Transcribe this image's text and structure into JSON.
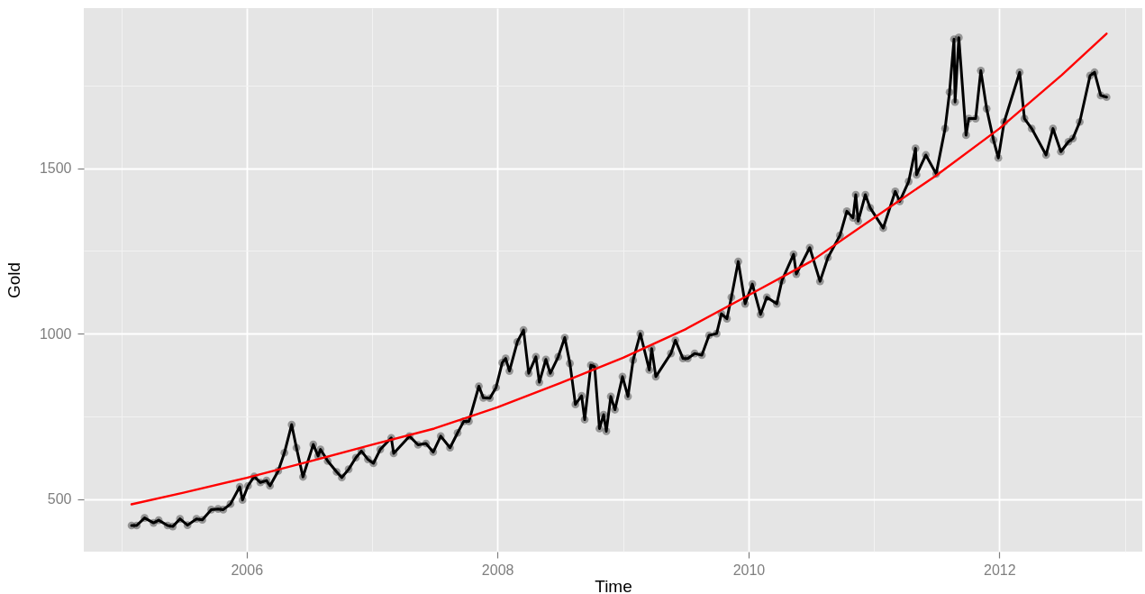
{
  "chart_data": {
    "type": "line",
    "xlabel": "Time",
    "ylabel": "Gold",
    "grid": true,
    "marker": "circle",
    "xlim": [
      "2004-09-14",
      "2013-02-20"
    ],
    "xticks": [
      {
        "value": "2005",
        "label": null
      },
      "2006",
      {
        "value": "2007",
        "label": null
      },
      "2008",
      {
        "value": "2009",
        "label": null
      },
      "2010",
      {
        "value": "2011",
        "label": null
      },
      "2012",
      {
        "value": "2013",
        "label": null
      }
    ],
    "ylim": [
      341,
      1984
    ],
    "yticks": [
      500,
      {
        "value": 750,
        "label": null
      },
      1000,
      {
        "value": 1250,
        "label": null
      },
      1500,
      {
        "value": 1750,
        "label": null
      }
    ],
    "x": [
      "2005-01-31",
      "2005-02-15",
      "2005-03-10",
      "2005-04-05",
      "2005-04-20",
      "2005-05-16",
      "2005-05-31",
      "2005-06-21",
      "2005-07-13",
      "2005-08-08",
      "2005-08-25",
      "2005-09-20",
      "2005-10-10",
      "2005-10-25",
      "2005-11-15",
      "2005-12-12",
      "2005-12-20",
      "2006-01-05",
      "2006-01-23",
      "2006-02-10",
      "2006-02-28",
      "2006-03-10",
      "2006-04-03",
      "2006-04-21",
      "2006-05-12",
      "2006-05-26",
      "2006-06-14",
      "2006-07-14",
      "2006-07-28",
      "2006-08-04",
      "2006-08-25",
      "2006-09-20",
      "2006-10-05",
      "2006-10-25",
      "2006-11-15",
      "2006-12-01",
      "2006-12-20",
      "2007-01-05",
      "2007-01-25",
      "2007-02-26",
      "2007-03-05",
      "2007-04-20",
      "2007-05-15",
      "2007-06-07",
      "2007-06-28",
      "2007-07-20",
      "2007-08-16",
      "2007-09-07",
      "2007-09-25",
      "2007-10-10",
      "2007-11-08",
      "2007-11-21",
      "2007-12-10",
      "2007-12-28",
      "2008-01-15",
      "2008-01-25",
      "2008-02-05",
      "2008-02-28",
      "2008-03-17",
      "2008-04-01",
      "2008-04-22",
      "2008-05-02",
      "2008-05-21",
      "2008-06-03",
      "2008-06-26",
      "2008-07-15",
      "2008-07-30",
      "2008-08-15",
      "2008-09-02",
      "2008-09-11",
      "2008-09-29",
      "2008-10-10",
      "2008-10-24",
      "2008-11-05",
      "2008-11-13",
      "2008-11-26",
      "2008-12-08",
      "2008-12-30",
      "2009-01-15",
      "2009-01-30",
      "2009-02-20",
      "2009-03-18",
      "2009-03-25",
      "2009-04-06",
      "2009-05-20",
      "2009-06-02",
      "2009-06-24",
      "2009-07-08",
      "2009-07-28",
      "2009-08-18",
      "2009-09-08",
      "2009-09-30",
      "2009-10-14",
      "2009-10-30",
      "2009-11-12",
      "2009-12-02",
      "2009-12-22",
      "2010-01-12",
      "2010-02-05",
      "2010-02-23",
      "2010-03-24",
      "2010-04-08",
      "2010-05-12",
      "2010-05-20",
      "2010-06-28",
      "2010-07-28",
      "2010-08-20",
      "2010-09-24",
      "2010-10-14",
      "2010-11-01",
      "2010-11-09",
      "2010-11-16",
      "2010-12-07",
      "2010-12-21",
      "2011-01-28",
      "2011-03-04",
      "2011-03-17",
      "2011-04-12",
      "2011-05-02",
      "2011-05-05",
      "2011-06-01",
      "2011-07-01",
      "2011-07-27",
      "2011-08-09",
      "2011-08-22",
      "2011-08-25",
      "2011-09-05",
      "2011-09-26",
      "2011-10-04",
      "2011-10-24",
      "2011-11-08",
      "2011-11-25",
      "2011-12-15",
      "2011-12-29",
      "2012-01-15",
      "2012-02-29",
      "2012-03-14",
      "2012-04-04",
      "2012-05-16",
      "2012-06-05",
      "2012-06-28",
      "2012-07-20",
      "2012-08-02",
      "2012-08-22",
      "2012-09-21",
      "2012-10-04",
      "2012-10-22",
      "2012-11-08"
    ],
    "series": [
      {
        "color": "#000000",
        "values": [
          420,
          420,
          443,
          428,
          436,
          420,
          417,
          440,
          421,
          440,
          437,
          468,
          470,
          468,
          485,
          537,
          497,
          540,
          568,
          550,
          556,
          540,
          585,
          640,
          725,
          655,
          567,
          665,
          630,
          650,
          615,
          582,
          565,
          590,
          625,
          645,
          620,
          608,
          650,
          685,
          638,
          690,
          664,
          668,
          642,
          690,
          655,
          700,
          735,
          735,
          841,
          806,
          805,
          837,
          912,
          925,
          887,
          975,
          1011,
          880,
          930,
          853,
          922,
          880,
          930,
          988,
          910,
          786,
          812,
          740,
          905,
          900,
          713,
          755,
          705,
          810,
          770,
          870,
          810,
          920,
          1000,
          890,
          955,
          870,
          940,
          980,
          925,
          925,
          940,
          935,
          995,
          1000,
          1060,
          1045,
          1110,
          1218,
          1090,
          1150,
          1058,
          1110,
          1090,
          1160,
          1240,
          1180,
          1260,
          1158,
          1230,
          1297,
          1370,
          1350,
          1420,
          1340,
          1420,
          1380,
          1319,
          1430,
          1400,
          1460,
          1560,
          1480,
          1540,
          1483,
          1620,
          1730,
          1890,
          1700,
          1895,
          1600,
          1650,
          1650,
          1795,
          1680,
          1585,
          1531,
          1640,
          1790,
          1650,
          1620,
          1540,
          1620,
          1550,
          1580,
          1590,
          1640,
          1780,
          1790,
          1720,
          1715
        ]
      },
      {
        "type": "line",
        "color": "#ff0000",
        "marker": "none",
        "x": [
          "2005-01-31",
          "2005-07-01",
          "2006-01-01",
          "2006-07-01",
          "2007-01-01",
          "2007-07-01",
          "2008-01-01",
          "2008-07-01",
          "2009-01-01",
          "2009-07-01",
          "2010-01-01",
          "2010-07-01",
          "2011-01-01",
          "2011-07-01",
          "2012-01-01",
          "2012-07-01",
          "2012-11-08"
        ],
        "values": [
          484,
          519,
          564,
          613,
          664,
          713,
          777,
          850,
          927,
          1013,
          1116,
          1218,
          1350,
          1478,
          1620,
          1782,
          1907
        ]
      }
    ]
  }
}
